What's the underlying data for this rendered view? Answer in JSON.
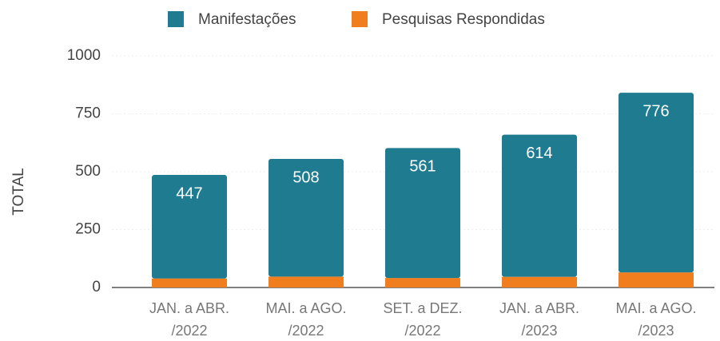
{
  "chart_data": {
    "type": "stacked_bar",
    "categories": [
      [
        "JAN. a ABR.",
        "/2022"
      ],
      [
        "MAI. a AGO.",
        "/2022"
      ],
      [
        "SET. a DEZ.",
        "/2022"
      ],
      [
        "JAN. a ABR.",
        "/2023"
      ],
      [
        "MAI. a AGO.",
        "/2023"
      ]
    ],
    "series": [
      {
        "name": "Pesquisas Respondidas",
        "color": "#f07d1e",
        "values": [
          39,
          47,
          41,
          46,
          65
        ]
      },
      {
        "name": "Manifestações",
        "color": "#1f7b8f",
        "values": [
          447,
          508,
          561,
          614,
          776
        ]
      }
    ],
    "legend_order": [
      1,
      0
    ],
    "y_label": "TOTAL",
    "ylim": [
      0,
      1000
    ],
    "yticks": [
      0,
      250,
      500,
      750,
      1000
    ],
    "grid": true
  }
}
